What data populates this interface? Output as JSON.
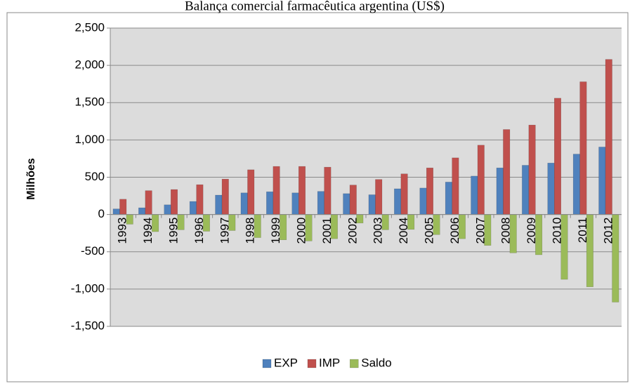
{
  "chart_data": {
    "type": "bar",
    "title": "Balança comercial farmacêutica argentina (US$)",
    "y_label": "Milhões",
    "categories": [
      "1993",
      "1994",
      "1995",
      "1996",
      "1997",
      "1998",
      "1999",
      "2000",
      "2001",
      "2002",
      "2003",
      "2004",
      "2005",
      "2006",
      "2007",
      "2008",
      "2009",
      "2010",
      "2011",
      "2012"
    ],
    "series": [
      {
        "name": "EXP",
        "color": "#4f81bd",
        "values": [
          75,
          90,
          130,
          175,
          260,
          290,
          305,
          290,
          310,
          280,
          265,
          345,
          355,
          435,
          515,
          625,
          660,
          690,
          810,
          905
        ]
      },
      {
        "name": "IMP",
        "color": "#c0504d",
        "values": [
          205,
          320,
          335,
          400,
          475,
          600,
          645,
          645,
          635,
          395,
          470,
          545,
          625,
          760,
          930,
          1140,
          1200,
          1560,
          1780,
          2080
        ]
      },
      {
        "name": "Saldo",
        "color": "#9bbb59",
        "values": [
          -130,
          -230,
          -205,
          -225,
          -215,
          -310,
          -340,
          -355,
          -325,
          -115,
          -205,
          -200,
          -270,
          -325,
          -415,
          -515,
          -540,
          -870,
          -970,
          -1175
        ]
      }
    ],
    "ylim": [
      -1500,
      2500
    ],
    "yticks": [
      {
        "value": -1500,
        "label": "-1,500"
      },
      {
        "value": -1000,
        "label": "-1,000"
      },
      -500,
      0,
      500,
      {
        "value": 1000,
        "label": "1,000"
      },
      {
        "value": 1500,
        "label": "1,500"
      },
      {
        "value": 2000,
        "label": "2,000"
      },
      {
        "value": 2500,
        "label": "2,500"
      }
    ],
    "grid": true,
    "legend": "bottom"
  }
}
